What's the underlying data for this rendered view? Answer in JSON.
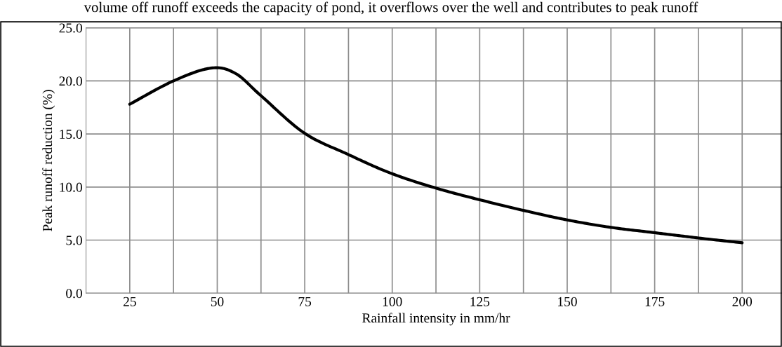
{
  "chart_data": {
    "type": "line",
    "xlabel": "Rainfall intensity in mm/hr",
    "ylabel": "Peak runoff reduction (%)",
    "annotations": [
      "volume off runoff exceeds the capacity of pond, it overflows over the well and contributes to peak runoff"
    ],
    "x": [
      25,
      37.5,
      48.2,
      55.2,
      62.5,
      74.8,
      87.2,
      99.6,
      112.5,
      125,
      137.5,
      150,
      162.5,
      175,
      187.5,
      200
    ],
    "series": [
      {
        "color": "#000000",
        "values": [
          17.8,
          20.0,
          21.2,
          20.7,
          18.6,
          15.1,
          13.1,
          11.3,
          9.9,
          8.8,
          7.8,
          6.9,
          6.2,
          5.7,
          5.2,
          4.75
        ]
      }
    ],
    "xlim": [
      12.5,
      212.5
    ],
    "xticks": [
      25,
      {
        "value": 37.5,
        "label": null
      },
      50,
      {
        "value": 62.5,
        "label": null
      },
      75,
      {
        "value": 87.5,
        "label": null
      },
      100,
      {
        "value": 112.5,
        "label": null
      },
      125,
      {
        "value": 137.5,
        "label": null
      },
      150,
      {
        "value": 162.5,
        "label": null
      },
      175,
      {
        "value": 187.5,
        "label": null
      },
      200
    ],
    "ylim": [
      0,
      25
    ],
    "yticks": [
      {
        "value": 0,
        "label": "0.0"
      },
      {
        "value": 5,
        "label": "5.0"
      },
      {
        "value": 10,
        "label": "10.0"
      },
      {
        "value": 15,
        "label": "15.0"
      },
      {
        "value": 20,
        "label": "20.0"
      },
      {
        "value": 25,
        "label": "25.0"
      }
    ],
    "grid": true,
    "marker": "none",
    "line_style": "solid"
  }
}
